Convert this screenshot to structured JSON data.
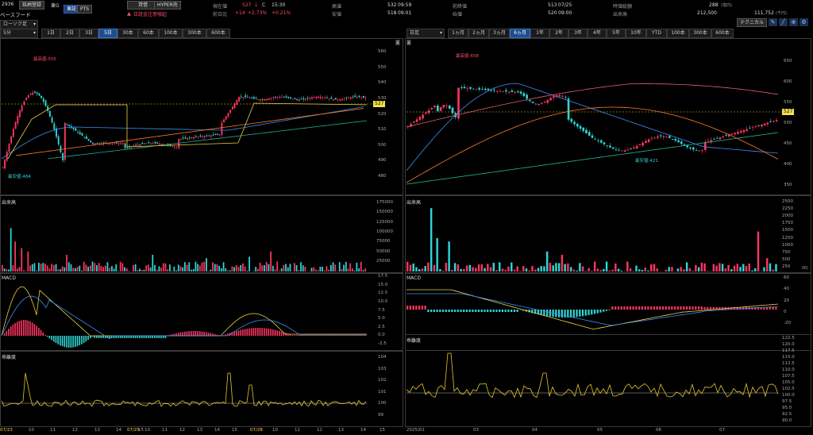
{
  "header": {
    "code": "2936",
    "register_btn": "銘柄登録",
    "market_btn": "東証",
    "market_prefix": "東G",
    "pts_btn": "PTS",
    "company_name": "ベースフード",
    "borrow_btn": "貸借",
    "hyper_btn": "HYPER売",
    "warning_text": "日証金注意喚起",
    "current_label": "現在値",
    "current_value": "527",
    "current_arrow": "↓",
    "current_flag": "C",
    "current_time": "15:30",
    "prev_diff_label": "前日比",
    "prev_diff_value": "+14",
    "prev_diff_pct": "+2.73%",
    "prev_diff_extra": "+0.21%",
    "high_label": "高値",
    "high_value": "532",
    "high_time": "09:59",
    "low_label": "安値",
    "low_value": "518",
    "low_time": "09:01",
    "prevclose_label": "前終値",
    "prevclose_value": "513",
    "prevclose_date": "07/25",
    "open_label": "始値",
    "open_value": "520",
    "open_time": "09:00",
    "mcap_label": "時価総額",
    "mcap_value": "288",
    "mcap_unit": "(億円)",
    "volume_label": "出来高",
    "volume_value": "212,500",
    "turnover_value": "111,752",
    "turnover_unit": "(千円)",
    "tech_btn": "テクニカル"
  },
  "left": {
    "interval": "5分",
    "chart_type": "ローソク足",
    "periods": [
      "1日",
      "2日",
      "3日",
      "5日",
      "30本",
      "60本",
      "100本",
      "300本",
      "600本"
    ],
    "active_period": "5日",
    "price_ticks": [
      "560",
      "550",
      "540",
      "530",
      "520",
      "510",
      "500",
      "490",
      "480"
    ],
    "price_tag": "527",
    "high_ann": "最高値:555",
    "low_ann": "最安値:484",
    "volume_title": "出来高",
    "volume_ticks": [
      "175000",
      "150000",
      "125000",
      "100000",
      "75000",
      "50000",
      "25000"
    ],
    "macd_title": "MACD",
    "macd_ticks": [
      "17.5",
      "15.0",
      "12.5",
      "10.0",
      "7.5",
      "5.0",
      "2.5",
      "0.0",
      "-2.5"
    ],
    "rsi_title": "乖離度",
    "rsi_ticks": [
      "104",
      "103",
      "102",
      "101",
      "100",
      "99"
    ],
    "x_ticks": [
      "07/23",
      "10",
      "11",
      "12",
      "13",
      "14",
      "15",
      "07/25",
      "10",
      "11",
      "12",
      "13",
      "14",
      "15",
      "07/28",
      "10",
      "11",
      "12",
      "13",
      "14",
      "15"
    ]
  },
  "right": {
    "interval": "日足",
    "periods": [
      "1ヵ月",
      "2ヵ月",
      "3ヵ月",
      "6ヵ月",
      "1年",
      "2年",
      "3年",
      "4年",
      "5年",
      "10年",
      "YTD",
      "100本",
      "300本",
      "600本"
    ],
    "active_period": "6ヵ月",
    "price_ticks": [
      "650",
      "600",
      "550",
      "500",
      "450",
      "400",
      "350"
    ],
    "price_tag": "527",
    "high_ann": "最高値:658",
    "low_ann": "最安値:421",
    "volume_title": "出来高",
    "volume_ticks": [
      "2500",
      "2250",
      "2000",
      "1750",
      "1500",
      "1250",
      "1000",
      "750",
      "500",
      "250"
    ],
    "volume_unit": "(K)",
    "macd_title": "MACD",
    "macd_ticks": [
      "60",
      "40",
      "20",
      "0",
      "-20"
    ],
    "rsi_title": "乖離度",
    "rsi_ticks": [
      "122.5",
      "120.0",
      "117.5",
      "115.0",
      "112.5",
      "110.0",
      "107.5",
      "105.0",
      "102.5",
      "100.0",
      "97.5",
      "95.0",
      "92.5",
      "90.0"
    ],
    "x_ticks": [
      "2025/01",
      "03",
      "04",
      "05",
      "06",
      "07"
    ]
  },
  "colors": {
    "up": "#ff3560",
    "down": "#2fd6d6",
    "ma_short": "#f0d040",
    "ma_mid": "#3d8ef0",
    "ma_long": "#ff7a2a",
    "ma_vlong": "#20b090",
    "gold": "#e6c828",
    "accent_blue": "#1f4d8c"
  }
}
